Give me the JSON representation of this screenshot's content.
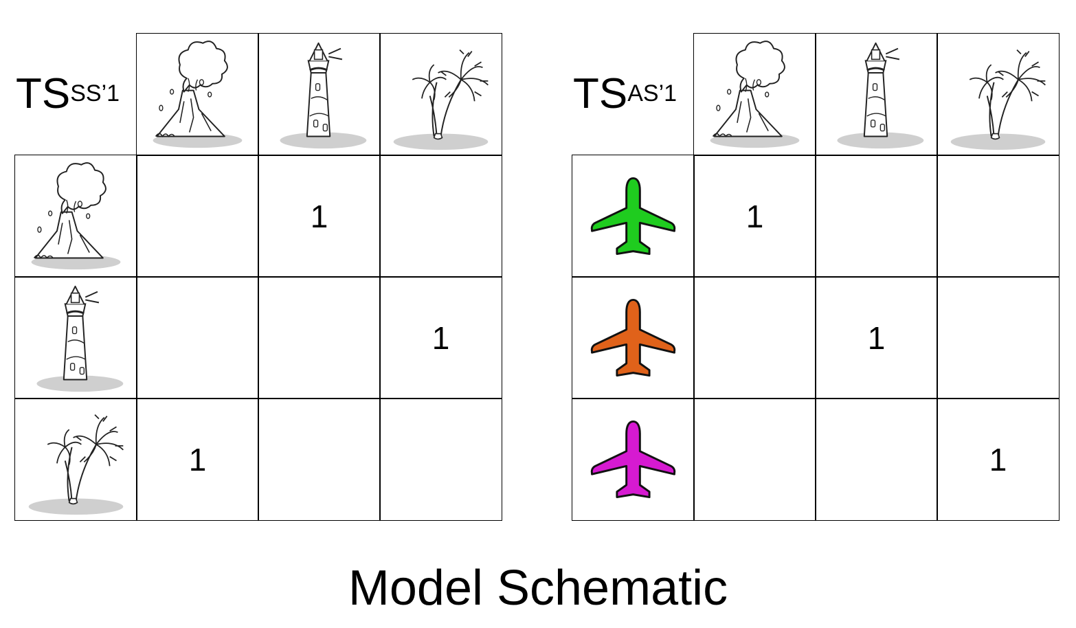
{
  "title": "Model Schematic",
  "matrices": [
    {
      "label_main": "TS",
      "label_sup": "SS’1",
      "column_icons": [
        "volcano-icon",
        "lighthouse-icon",
        "palm-tree-icon"
      ],
      "row_icons": [
        "volcano-icon",
        "lighthouse-icon",
        "palm-tree-icon"
      ],
      "values": [
        [
          "",
          "1",
          ""
        ],
        [
          "",
          "",
          "1"
        ],
        [
          "1",
          "",
          ""
        ]
      ]
    },
    {
      "label_main": "TS",
      "label_sup": "AS’1",
      "column_icons": [
        "volcano-icon",
        "lighthouse-icon",
        "palm-tree-icon"
      ],
      "row_icons": [
        "airplane-icon",
        "airplane-icon",
        "airplane-icon"
      ],
      "row_icon_colors": [
        "#1fcc1f",
        "#e0621a",
        "#d61ad1"
      ],
      "values": [
        [
          "1",
          "",
          ""
        ],
        [
          "",
          "1",
          ""
        ],
        [
          "",
          "",
          "1"
        ]
      ]
    }
  ]
}
